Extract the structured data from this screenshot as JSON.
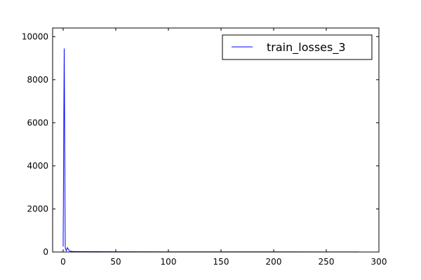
{
  "chart_data": {
    "type": "line",
    "title": "",
    "xlabel": "",
    "ylabel": "",
    "xlim": [
      -10,
      300
    ],
    "ylim": [
      0,
      10400
    ],
    "xticks": [
      0,
      50,
      100,
      150,
      200,
      250,
      300
    ],
    "yticks": [
      0,
      2000,
      4000,
      6000,
      8000,
      10000
    ],
    "grid": false,
    "legend_position": "top-right",
    "series": [
      {
        "name": "train_losses_3",
        "color": "#0000ff",
        "x": [
          0,
          1,
          2,
          3,
          4,
          5,
          6,
          8,
          10,
          15,
          20,
          30,
          50,
          100,
          150,
          200,
          250,
          281
        ],
        "y": [
          250,
          9450,
          180,
          60,
          200,
          120,
          50,
          30,
          25,
          20,
          18,
          15,
          12,
          10,
          8,
          7,
          6,
          5
        ]
      }
    ]
  }
}
